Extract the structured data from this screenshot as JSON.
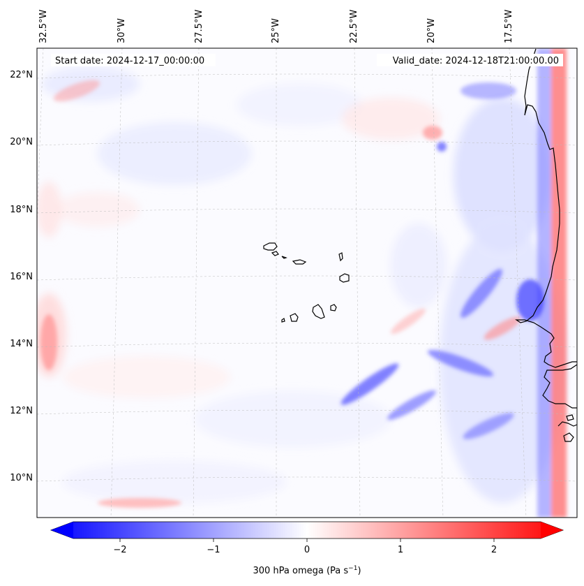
{
  "map": {
    "header": {
      "start_date": "Start date: 2024-12-17_00:00:00",
      "valid_date": "Valid_date: 2024-12-18T21:00:00.00"
    },
    "lon_labels": [
      "32.5°W",
      "30°W",
      "27.5°W",
      "25°W",
      "22.5°W",
      "20°W",
      "17.5°W"
    ],
    "lat_labels": [
      "22°N",
      "20°N",
      "18°N",
      "16°N",
      "14°N",
      "12°N",
      "10°N"
    ],
    "colorbar": {
      "ticks": [
        "−2",
        "−1",
        "0",
        "1",
        "2"
      ],
      "tick_values": [
        -2,
        -1,
        0,
        1,
        2
      ],
      "range": [
        -2.6,
        2.6
      ],
      "label_main": "300 hPa omega (Pa s",
      "label_exp": "−1",
      "label_close": ")",
      "colors": {
        "low": "#0000ff",
        "mid": "#ffffff",
        "high": "#ff0000"
      }
    },
    "colors": {
      "coastline": "#000000",
      "grid": "#bbbbbb",
      "frame": "#000000"
    }
  }
}
